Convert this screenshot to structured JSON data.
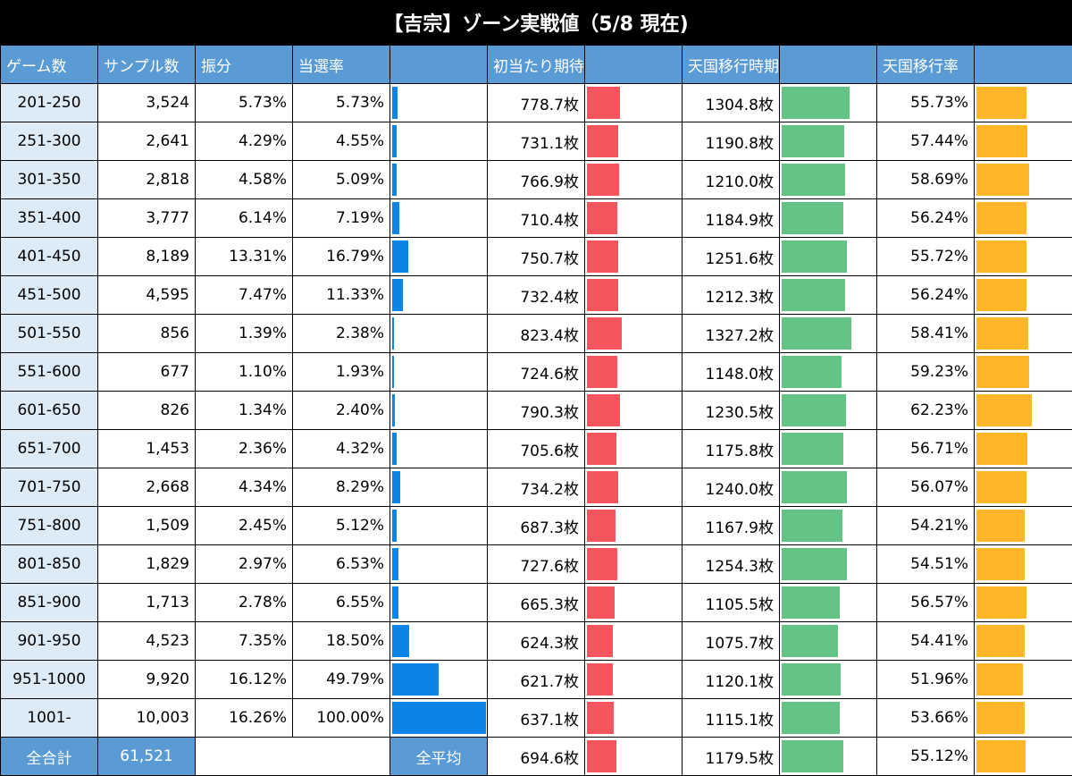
{
  "title": "【吉宗】ゾーン実戦値（5/8 現在)",
  "headers": [
    "ゲーム数",
    "サンプル数",
    "振分",
    "当選率",
    "",
    "初当たり期待枚数",
    "",
    "天国移行時期待枚数",
    "",
    "天国移行率",
    ""
  ],
  "colors": {
    "header": "#5b9bd5",
    "zone": "#ddebf7",
    "blue": "#0a84e8",
    "red": "#f5555d",
    "green": "#63c384",
    "orange": "#ffb628"
  },
  "rows": [
    {
      "zone": "201-250",
      "samples": "3,524",
      "dist": "5.73%",
      "rate": "5.73%",
      "rate_val": 5.73,
      "first": "778.7枚",
      "first_val": 778.7,
      "heaven": "1304.8枚",
      "heaven_val": 1304.8,
      "trans": "55.73%",
      "trans_val": 55.73
    },
    {
      "zone": "251-300",
      "samples": "2,641",
      "dist": "4.29%",
      "rate": "4.55%",
      "rate_val": 4.55,
      "first": "731.1枚",
      "first_val": 731.1,
      "heaven": "1190.8枚",
      "heaven_val": 1190.8,
      "trans": "57.44%",
      "trans_val": 57.44
    },
    {
      "zone": "301-350",
      "samples": "2,818",
      "dist": "4.58%",
      "rate": "5.09%",
      "rate_val": 5.09,
      "first": "766.9枚",
      "first_val": 766.9,
      "heaven": "1210.0枚",
      "heaven_val": 1210.0,
      "trans": "58.69%",
      "trans_val": 58.69
    },
    {
      "zone": "351-400",
      "samples": "3,777",
      "dist": "6.14%",
      "rate": "7.19%",
      "rate_val": 7.19,
      "first": "710.4枚",
      "first_val": 710.4,
      "heaven": "1184.9枚",
      "heaven_val": 1184.9,
      "trans": "56.24%",
      "trans_val": 56.24
    },
    {
      "zone": "401-450",
      "samples": "8,189",
      "dist": "13.31%",
      "rate": "16.79%",
      "rate_val": 16.79,
      "first": "750.7枚",
      "first_val": 750.7,
      "heaven": "1251.6枚",
      "heaven_val": 1251.6,
      "trans": "55.72%",
      "trans_val": 55.72
    },
    {
      "zone": "451-500",
      "samples": "4,595",
      "dist": "7.47%",
      "rate": "11.33%",
      "rate_val": 11.33,
      "first": "732.4枚",
      "first_val": 732.4,
      "heaven": "1212.3枚",
      "heaven_val": 1212.3,
      "trans": "56.24%",
      "trans_val": 56.24
    },
    {
      "zone": "501-550",
      "samples": "856",
      "dist": "1.39%",
      "rate": "2.38%",
      "rate_val": 2.38,
      "first": "823.4枚",
      "first_val": 823.4,
      "heaven": "1327.2枚",
      "heaven_val": 1327.2,
      "trans": "58.41%",
      "trans_val": 58.41
    },
    {
      "zone": "551-600",
      "samples": "677",
      "dist": "1.10%",
      "rate": "1.93%",
      "rate_val": 1.93,
      "first": "724.6枚",
      "first_val": 724.6,
      "heaven": "1148.0枚",
      "heaven_val": 1148.0,
      "trans": "59.23%",
      "trans_val": 59.23
    },
    {
      "zone": "601-650",
      "samples": "826",
      "dist": "1.34%",
      "rate": "2.40%",
      "rate_val": 2.4,
      "first": "790.3枚",
      "first_val": 790.3,
      "heaven": "1230.5枚",
      "heaven_val": 1230.5,
      "trans": "62.23%",
      "trans_val": 62.23
    },
    {
      "zone": "651-700",
      "samples": "1,453",
      "dist": "2.36%",
      "rate": "4.32%",
      "rate_val": 4.32,
      "first": "705.6枚",
      "first_val": 705.6,
      "heaven": "1175.8枚",
      "heaven_val": 1175.8,
      "trans": "56.71%",
      "trans_val": 56.71
    },
    {
      "zone": "701-750",
      "samples": "2,668",
      "dist": "4.34%",
      "rate": "8.29%",
      "rate_val": 8.29,
      "first": "734.2枚",
      "first_val": 734.2,
      "heaven": "1240.0枚",
      "heaven_val": 1240.0,
      "trans": "56.07%",
      "trans_val": 56.07
    },
    {
      "zone": "751-800",
      "samples": "1,509",
      "dist": "2.45%",
      "rate": "5.12%",
      "rate_val": 5.12,
      "first": "687.3枚",
      "first_val": 687.3,
      "heaven": "1167.9枚",
      "heaven_val": 1167.9,
      "trans": "54.21%",
      "trans_val": 54.21
    },
    {
      "zone": "801-850",
      "samples": "1,829",
      "dist": "2.97%",
      "rate": "6.53%",
      "rate_val": 6.53,
      "first": "727.6枚",
      "first_val": 727.6,
      "heaven": "1254.3枚",
      "heaven_val": 1254.3,
      "trans": "54.51%",
      "trans_val": 54.51
    },
    {
      "zone": "851-900",
      "samples": "1,713",
      "dist": "2.78%",
      "rate": "6.55%",
      "rate_val": 6.55,
      "first": "665.3枚",
      "first_val": 665.3,
      "heaven": "1105.5枚",
      "heaven_val": 1105.5,
      "trans": "56.57%",
      "trans_val": 56.57
    },
    {
      "zone": "901-950",
      "samples": "4,523",
      "dist": "7.35%",
      "rate": "18.50%",
      "rate_val": 18.5,
      "first": "624.3枚",
      "first_val": 624.3,
      "heaven": "1075.7枚",
      "heaven_val": 1075.7,
      "trans": "54.41%",
      "trans_val": 54.41
    },
    {
      "zone": "951-1000",
      "samples": "9,920",
      "dist": "16.12%",
      "rate": "49.79%",
      "rate_val": 49.79,
      "first": "621.7枚",
      "first_val": 621.7,
      "heaven": "1120.1枚",
      "heaven_val": 1120.1,
      "trans": "51.96%",
      "trans_val": 51.96
    },
    {
      "zone": "1001-",
      "samples": "10,003",
      "dist": "16.26%",
      "rate": "100.00%",
      "rate_val": 100.0,
      "first": "637.1枚",
      "first_val": 637.1,
      "heaven": "1115.1枚",
      "heaven_val": 1115.1,
      "trans": "53.66%",
      "trans_val": 53.66
    }
  ],
  "total": {
    "label": "全合計",
    "samples": "61,521",
    "avg_label": "全平均",
    "first": "694.6枚",
    "first_val": 694.6,
    "heaven": "1179.5枚",
    "heaven_val": 1179.5,
    "trans": "55.12%",
    "trans_val": 55.12
  }
}
